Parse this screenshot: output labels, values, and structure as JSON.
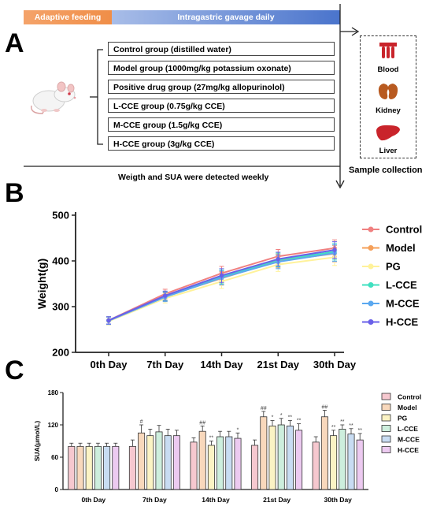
{
  "panel_labels": {
    "a": "A",
    "b": "B",
    "c": "C"
  },
  "timeline": {
    "adaptive_label": "Adaptive feeding",
    "gavage_label": "Intragastric gavage daily",
    "weekly_note": "Weigth and SUA were detected weekly",
    "sample_label": "Sample collection"
  },
  "groups": [
    "Control group (distilled water)",
    "Model group (1000mg/kg potassium oxonate)",
    "Positive drug group (27mg/kg allopurinolol)",
    "L-CCE group (0.75g/kg CCE)",
    "M-CCE group (1.5g/kg CCE)",
    "H-CCE group (3g/kg CCE)"
  ],
  "samples": {
    "blood": "Blood",
    "kidney": "Kidney",
    "liver": "Liver"
  },
  "colors": {
    "control": "#f08080",
    "model": "#f5a05a",
    "pg": "#fff29a",
    "lcce": "#40e0c0",
    "mcce": "#5aa8f0",
    "hcce": "#6a60e8",
    "bar_control": "#f6c8cf",
    "bar_model": "#f8d8bc",
    "bar_pg": "#fbf3c4",
    "bar_lcce": "#cdeedd",
    "bar_mcce": "#c8dcf2",
    "bar_hcce": "#eccaf0"
  },
  "chart_data": [
    {
      "type": "line",
      "ylabel": "Weight(g)",
      "xlabel": "",
      "ylim": [
        200,
        500
      ],
      "yticks": [
        "200",
        "300",
        "400",
        "500"
      ],
      "categories": [
        "0th Day",
        "7th Day",
        "14th Day",
        "21st Day",
        "30th Day"
      ],
      "legend_position": "right",
      "series": [
        {
          "name": "Control",
          "values": [
            270,
            328,
            373,
            410,
            428
          ],
          "err": [
            8,
            10,
            15,
            15,
            18
          ]
        },
        {
          "name": "Model",
          "values": [
            269,
            322,
            362,
            400,
            416
          ],
          "err": [
            8,
            10,
            15,
            15,
            18
          ]
        },
        {
          "name": "PG",
          "values": [
            268,
            318,
            355,
            392,
            408
          ],
          "err": [
            8,
            10,
            15,
            15,
            18
          ]
        },
        {
          "name": "L-CCE",
          "values": [
            270,
            323,
            365,
            402,
            420
          ],
          "err": [
            8,
            10,
            15,
            15,
            18
          ]
        },
        {
          "name": "M-CCE",
          "values": [
            269,
            321,
            363,
            398,
            417
          ],
          "err": [
            8,
            10,
            15,
            15,
            18
          ]
        },
        {
          "name": "H-CCE",
          "values": [
            270,
            324,
            368,
            404,
            424
          ],
          "err": [
            8,
            10,
            15,
            15,
            18
          ]
        }
      ]
    },
    {
      "type": "bar",
      "ylabel": "SUA(μmol/L)",
      "xlabel": "",
      "ylim": [
        0,
        180
      ],
      "yticks": [
        "0",
        "60",
        "120",
        "180"
      ],
      "categories": [
        "0th Day",
        "7th Day",
        "14th Day",
        "21st Day",
        "30th Day"
      ],
      "legend_position": "right",
      "series": [
        {
          "name": "Control",
          "values": [
            80,
            80,
            88,
            82,
            88
          ],
          "err": [
            6,
            12,
            8,
            10,
            10
          ],
          "marks": [
            "",
            "",
            "",
            "",
            ""
          ]
        },
        {
          "name": "Model",
          "values": [
            80,
            105,
            108,
            135,
            135
          ],
          "err": [
            6,
            15,
            10,
            10,
            12
          ],
          "marks": [
            "",
            "#",
            "##",
            "##",
            "##"
          ]
        },
        {
          "name": "PG",
          "values": [
            80,
            100,
            82,
            118,
            100
          ],
          "err": [
            6,
            12,
            8,
            10,
            10
          ],
          "marks": [
            "",
            "",
            "**",
            "*",
            "**"
          ]
        },
        {
          "name": "L-CCE",
          "values": [
            80,
            107,
            98,
            120,
            112
          ],
          "err": [
            6,
            12,
            10,
            12,
            8
          ],
          "marks": [
            "",
            "",
            "",
            "*",
            "**"
          ]
        },
        {
          "name": "M-CCE",
          "values": [
            80,
            100,
            98,
            118,
            103
          ],
          "err": [
            6,
            12,
            10,
            10,
            10
          ],
          "marks": [
            "",
            "",
            "",
            "**",
            "**"
          ]
        },
        {
          "name": "H-CCE",
          "values": [
            80,
            100,
            95,
            110,
            92
          ],
          "err": [
            6,
            10,
            10,
            12,
            12
          ],
          "marks": [
            "",
            "",
            "*",
            "**",
            "**"
          ]
        }
      ]
    }
  ]
}
